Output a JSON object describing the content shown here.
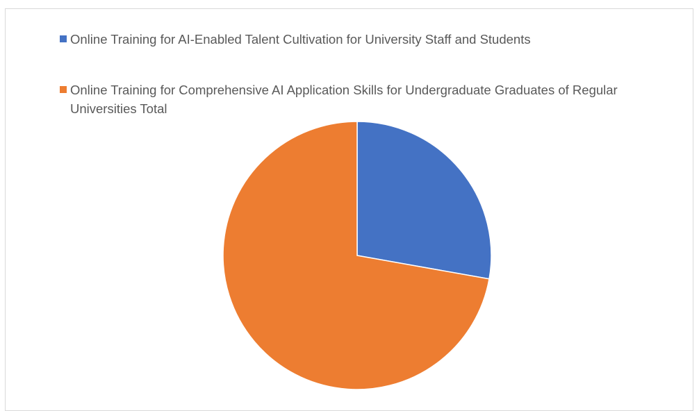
{
  "chart_data": {
    "type": "pie",
    "title": "",
    "legend_position": "top",
    "series": [
      {
        "name": "Online Training for AI-Enabled Talent Cultivation for University Staff and Students",
        "value": 27.8,
        "color": "#4472C4"
      },
      {
        "name": "Online Training for Comprehensive AI Application Skills for Undergraduate Graduates of Regular Universities Total",
        "value": 72.2,
        "color": "#ED7D31"
      }
    ]
  }
}
